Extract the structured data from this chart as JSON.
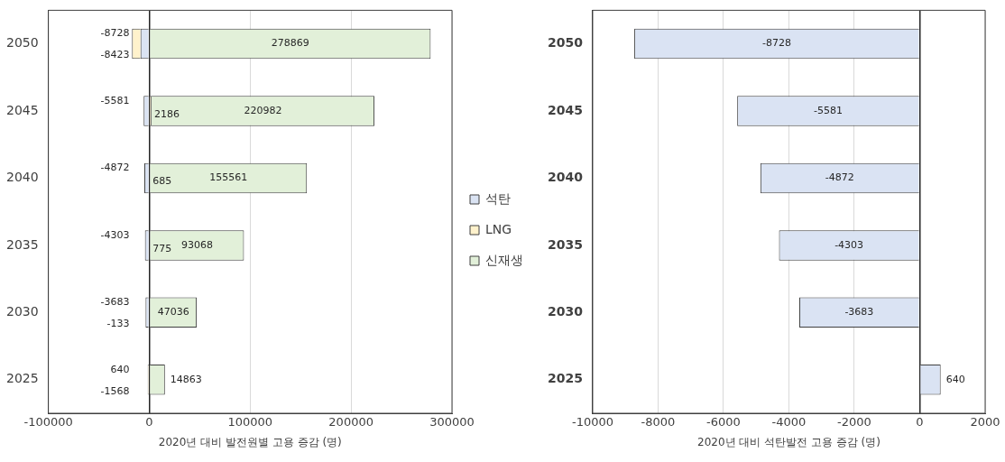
{
  "chart_data": [
    {
      "type": "bar",
      "orientation": "horizontal",
      "stacked": true,
      "categories": [
        "2050",
        "2045",
        "2040",
        "2035",
        "2030",
        "2025"
      ],
      "series": [
        {
          "name": "석탄",
          "color": "#dae3f3",
          "values": [
            -8728,
            -5581,
            -4872,
            -4303,
            -3683,
            640
          ]
        },
        {
          "name": "LNG",
          "color": "#fff2cc",
          "values": [
            -8423,
            2186,
            685,
            775,
            -133,
            -1568
          ]
        },
        {
          "name": "신재생",
          "color": "#e2f0d9",
          "values": [
            278869,
            220982,
            155561,
            93068,
            47036,
            14863
          ]
        }
      ],
      "xlim": [
        -100000,
        300000
      ],
      "xticks": [
        -100000,
        0,
        100000,
        200000,
        300000
      ],
      "xlabel": "2020년 대비 발전원별 고용 증감 (명)",
      "grid": "x",
      "legend": "right",
      "data_labels": true
    },
    {
      "type": "bar",
      "orientation": "horizontal",
      "categories": [
        "2050",
        "2045",
        "2040",
        "2035",
        "2030",
        "2025"
      ],
      "series": [
        {
          "color": "#dae3f3",
          "values": [
            -8728,
            -5581,
            -4872,
            -4303,
            -3683,
            640
          ]
        }
      ],
      "xlim": [
        -10000,
        2000
      ],
      "xticks": [
        -10000,
        -8000,
        -6000,
        -4000,
        -2000,
        0,
        2000
      ],
      "xlabel": "2020년 대비 석탄발전 고용 증감 (명)",
      "grid": "x",
      "legend": false,
      "data_labels": true
    }
  ]
}
